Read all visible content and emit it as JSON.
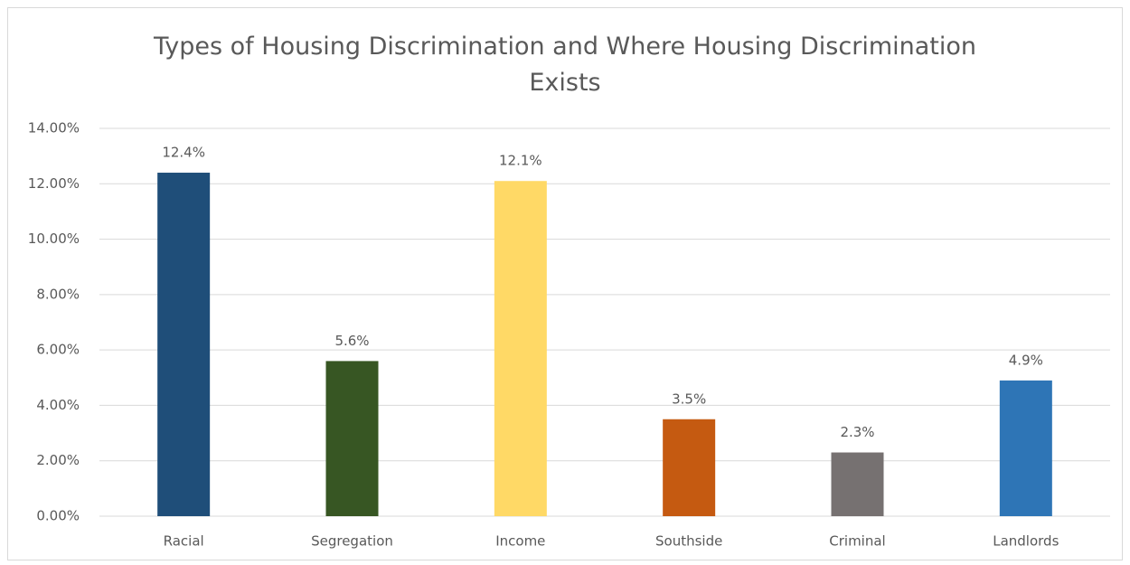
{
  "chart_data": {
    "type": "bar",
    "title": "Types of Housing Discrimination and Where Housing Discrimination Exists",
    "categories": [
      "Racial",
      "Segregation",
      "Income",
      "Southside",
      "Criminal",
      "Landlords"
    ],
    "values": [
      12.4,
      5.6,
      12.1,
      3.5,
      2.3,
      4.9
    ],
    "value_labels": [
      "12.4%",
      "5.6%",
      "12.1%",
      "3.5%",
      "2.3%",
      "4.9%"
    ],
    "colors": [
      "#1f4e79",
      "#375623",
      "#ffd966",
      "#c55a11",
      "#767171",
      "#2e75b6"
    ],
    "ylim": [
      0,
      14
    ],
    "yticks": [
      {
        "value": 0,
        "label": "0.00%"
      },
      {
        "value": 2,
        "label": "2.00%"
      },
      {
        "value": 4,
        "label": "4.00%"
      },
      {
        "value": 6,
        "label": "6.00%"
      },
      {
        "value": 8,
        "label": "8.00%"
      },
      {
        "value": 10,
        "label": "10.00%"
      },
      {
        "value": 12,
        "label": "12.00%"
      },
      {
        "value": 14,
        "label": "14.00%"
      }
    ],
    "grid": true
  }
}
